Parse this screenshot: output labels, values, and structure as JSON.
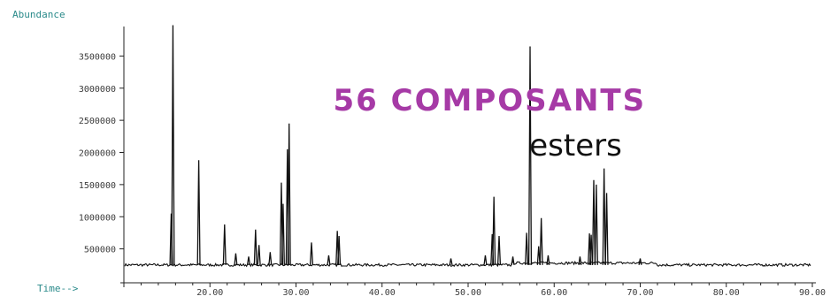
{
  "chart_data": {
    "type": "line",
    "title": "",
    "xlabel": "Time-->",
    "ylabel": "Abundance",
    "xlim": [
      10,
      90
    ],
    "ylim": [
      0,
      4000000
    ],
    "x_ticks": [
      {
        "value": 20,
        "label": "20.00"
      },
      {
        "value": 30,
        "label": "30.00"
      },
      {
        "value": 40,
        "label": "40.00"
      },
      {
        "value": 50,
        "label": "50.00"
      },
      {
        "value": 60,
        "label": "60.00"
      },
      {
        "value": 70,
        "label": "70.00"
      },
      {
        "value": 80,
        "label": "80.00"
      },
      {
        "value": 90,
        "label": "90.00"
      }
    ],
    "y_ticks": [
      {
        "value": 500000,
        "label": "500000"
      },
      {
        "value": 1000000,
        "label": "1000000"
      },
      {
        "value": 1500000,
        "label": "1500000"
      },
      {
        "value": 2000000,
        "label": "2000000"
      },
      {
        "value": 2500000,
        "label": "2500000"
      },
      {
        "value": 3000000,
        "label": "3000000"
      },
      {
        "value": 3500000,
        "label": "3500000"
      }
    ],
    "baseline": 250000,
    "peaks": [
      {
        "x": 15.5,
        "y": 1050000
      },
      {
        "x": 15.7,
        "y": 3980000
      },
      {
        "x": 18.7,
        "y": 1880000
      },
      {
        "x": 21.7,
        "y": 880000
      },
      {
        "x": 23.0,
        "y": 430000
      },
      {
        "x": 24.5,
        "y": 380000
      },
      {
        "x": 25.3,
        "y": 800000
      },
      {
        "x": 25.7,
        "y": 560000
      },
      {
        "x": 27.0,
        "y": 450000
      },
      {
        "x": 28.3,
        "y": 1530000
      },
      {
        "x": 28.5,
        "y": 1200000
      },
      {
        "x": 29.0,
        "y": 2050000
      },
      {
        "x": 29.2,
        "y": 2450000
      },
      {
        "x": 31.8,
        "y": 600000
      },
      {
        "x": 33.8,
        "y": 400000
      },
      {
        "x": 34.8,
        "y": 780000
      },
      {
        "x": 35.0,
        "y": 700000
      },
      {
        "x": 48.0,
        "y": 350000
      },
      {
        "x": 52.0,
        "y": 400000
      },
      {
        "x": 52.8,
        "y": 730000
      },
      {
        "x": 53.0,
        "y": 1310000
      },
      {
        "x": 53.6,
        "y": 700000
      },
      {
        "x": 55.2,
        "y": 380000
      },
      {
        "x": 56.8,
        "y": 750000
      },
      {
        "x": 57.2,
        "y": 3650000
      },
      {
        "x": 58.2,
        "y": 540000
      },
      {
        "x": 58.5,
        "y": 980000
      },
      {
        "x": 59.3,
        "y": 400000
      },
      {
        "x": 63.0,
        "y": 380000
      },
      {
        "x": 64.1,
        "y": 740000
      },
      {
        "x": 64.3,
        "y": 720000
      },
      {
        "x": 64.6,
        "y": 1570000
      },
      {
        "x": 64.9,
        "y": 1500000
      },
      {
        "x": 65.8,
        "y": 1750000
      },
      {
        "x": 66.1,
        "y": 1370000
      },
      {
        "x": 70.0,
        "y": 350000
      }
    ],
    "annotations": [
      {
        "text": "56 COMPOSANTS",
        "x": 52.5,
        "y": 2650000,
        "color": "#a63aa6"
      },
      {
        "text": "esters",
        "x": 62.5,
        "y": 1950000,
        "color": "#111111"
      }
    ],
    "line_color": "#111111",
    "axis_label_color": "#2a8a8a",
    "grid": false,
    "legend": "none"
  }
}
